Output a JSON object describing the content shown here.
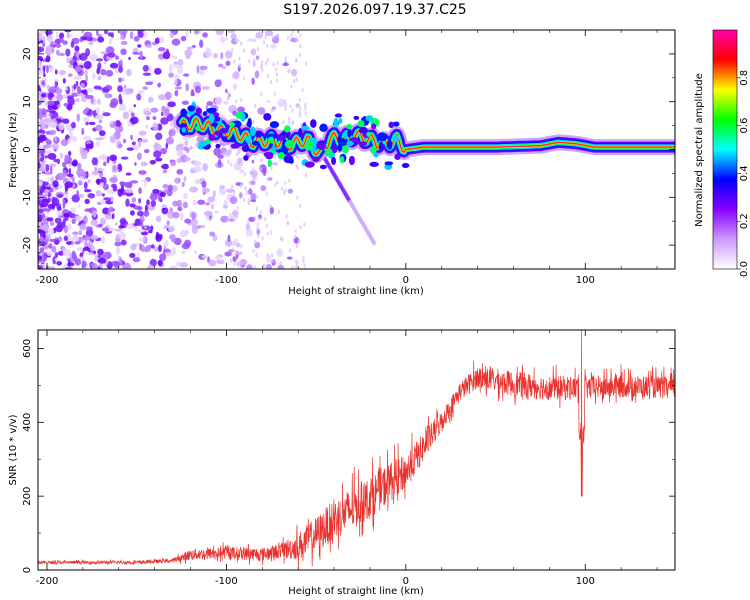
{
  "title": "S197.2026.097.19.37.C25",
  "colors": {
    "snr_line": "#e8322d",
    "frame": "#000000",
    "ridge_core": "#ff1f3b",
    "ridge_outer": "#2a2ad8"
  },
  "chart_data": [
    {
      "type": "heatmap",
      "name": "spectrogram",
      "xlabel": "Height of straight line (km)",
      "ylabel": "Frequency (Hz)",
      "xlim": [
        -205,
        150
      ],
      "ylim": [
        -25,
        25
      ],
      "xticks": [
        -200,
        -100,
        0,
        100
      ],
      "xtick_labels": [
        "-200",
        "-100",
        "0",
        "100"
      ],
      "yticks": [
        -20,
        -10,
        0,
        10,
        20
      ],
      "ytick_labels": [
        "-20",
        "-10",
        "0",
        "10",
        "20"
      ],
      "ridge": {
        "x": [
          -125,
          -115,
          -105,
          -95,
          -85,
          -75,
          -65,
          -55,
          -48,
          -42,
          -35,
          -28,
          -20,
          -12,
          -5,
          0,
          10,
          25,
          50,
          75,
          85,
          95,
          105,
          120,
          150
        ],
        "y": [
          5,
          5.5,
          4,
          3.5,
          1.5,
          2,
          1,
          2,
          -1,
          2.5,
          2,
          3,
          2,
          1,
          2,
          0,
          0.5,
          0.5,
          0.5,
          0.8,
          1.5,
          1.2,
          0.5,
          0.5,
          0.5
        ]
      },
      "colorbar": {
        "label": "Normalized spectral amplitude",
        "ticks": [
          0.0,
          0.2,
          0.4,
          0.6,
          0.8
        ],
        "tick_labels": [
          "0.0",
          "0.2",
          "0.4",
          "0.6",
          "0.8"
        ],
        "range": [
          0,
          1
        ],
        "colors": [
          "#ffffff",
          "#cc99ff",
          "#8800ff",
          "#0000ff",
          "#00ffff",
          "#00ff00",
          "#ffff00",
          "#ff0000",
          "#ff00aa"
        ]
      }
    },
    {
      "type": "line",
      "name": "snr",
      "xlabel": "Height of straight line (km)",
      "ylabel": "SNR (10 * v/v)",
      "xlim": [
        -205,
        150
      ],
      "ylim": [
        0,
        650
      ],
      "xticks": [
        -200,
        -100,
        0,
        100
      ],
      "xtick_labels": [
        "-200",
        "-100",
        "0",
        "100"
      ],
      "yticks": [
        0,
        200,
        400,
        600
      ],
      "ytick_labels": [
        "0",
        "200",
        "400",
        "600"
      ],
      "envelope": {
        "x": [
          -205,
          -150,
          -130,
          -120,
          -100,
          -80,
          -70,
          -60,
          -50,
          -40,
          -30,
          -20,
          -10,
          0,
          10,
          20,
          30,
          40,
          50,
          60,
          80,
          100,
          120,
          150
        ],
        "y": [
          20,
          20,
          25,
          40,
          45,
          40,
          50,
          60,
          90,
          130,
          160,
          190,
          230,
          260,
          330,
          400,
          480,
          520,
          510,
          500,
          490,
          490,
          495,
          490
        ]
      },
      "noise_amp": {
        "x": [
          -205,
          -130,
          -120,
          -70,
          -65,
          -50,
          -30,
          -10,
          10,
          25,
          40,
          60,
          150
        ],
        "y": [
          8,
          10,
          30,
          40,
          60,
          100,
          120,
          110,
          80,
          50,
          60,
          70,
          60
        ]
      },
      "spike": {
        "x": 98,
        "top": 650,
        "dip": 200
      }
    }
  ]
}
